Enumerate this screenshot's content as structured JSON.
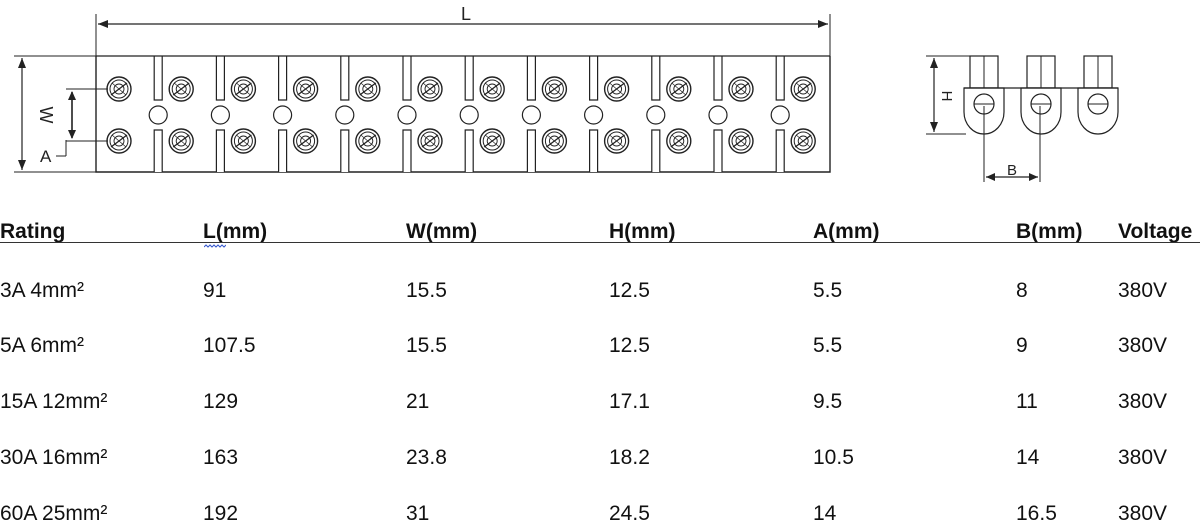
{
  "diagram": {
    "length_label": "L",
    "width_label": "W",
    "a_label": "A",
    "height_label": "H",
    "b_label": "B"
  },
  "table": {
    "headers": [
      "Rating",
      "L(mm)",
      "W(mm)",
      "H(mm)",
      "A(mm)",
      "B(mm)",
      "Voltage"
    ],
    "rows": [
      [
        "3A 4mm²",
        "91",
        "15.5",
        "12.5",
        "5.5",
        "8",
        "380V"
      ],
      [
        "5A 6mm²",
        "107.5",
        "15.5",
        "12.5",
        "5.5",
        "9",
        "380V"
      ],
      [
        "15A 12mm²",
        "129",
        "21",
        "17.1",
        "9.5",
        "11",
        "380V"
      ],
      [
        "30A 16mm²",
        "163",
        "23.8",
        "18.2",
        "10.5",
        "14",
        "380V"
      ],
      [
        "60A 25mm²",
        "192",
        "31",
        "24.5",
        "14",
        "16.5",
        "380V"
      ]
    ]
  }
}
